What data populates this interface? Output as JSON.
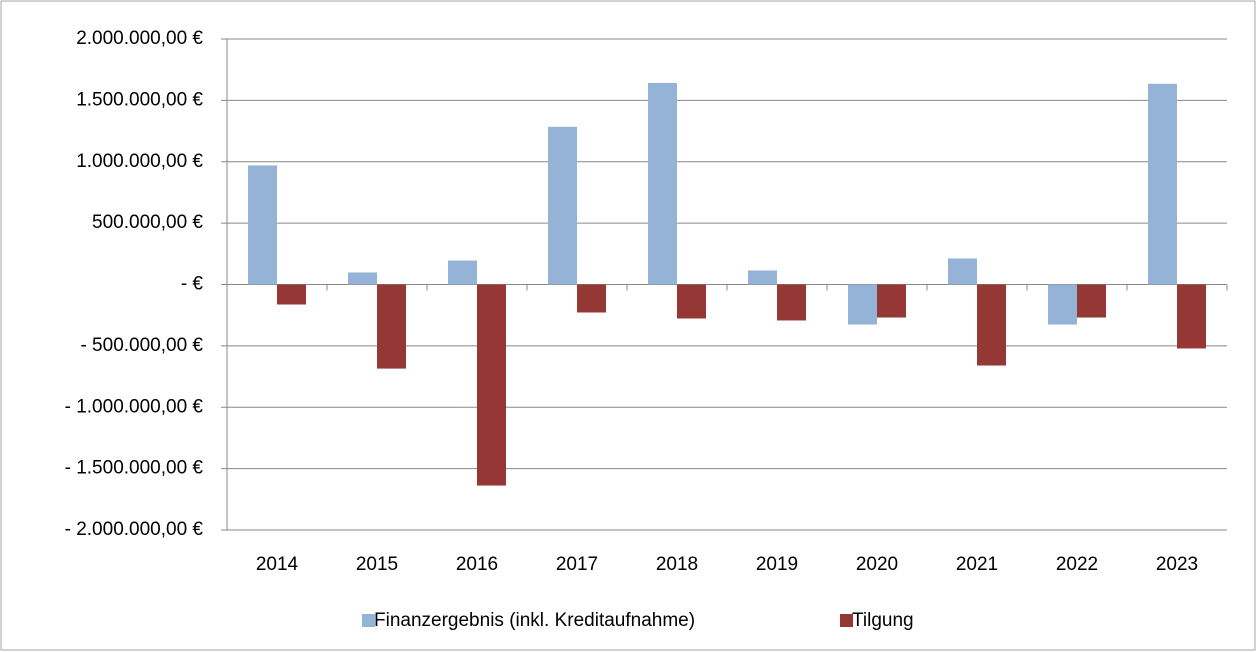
{
  "chart_data": {
    "type": "bar",
    "categories": [
      "2014",
      "2015",
      "2016",
      "2017",
      "2018",
      "2019",
      "2020",
      "2021",
      "2022",
      "2023"
    ],
    "series": [
      {
        "name": "Finanzergebnis (inkl. Kreditaufnahme)",
        "color": "#95b3d7",
        "values": [
          970000,
          98000,
          195000,
          1285000,
          1642000,
          114000,
          -326000,
          212000,
          -326000,
          1635000
        ]
      },
      {
        "name": "Tilgung",
        "color": "#953735",
        "values": [
          -163000,
          -685000,
          -1638000,
          -228000,
          -277000,
          -293000,
          -269000,
          -660000,
          -269000,
          -521000
        ]
      }
    ],
    "ylim": [
      -2000000,
      2000000
    ],
    "yticks": [
      {
        "value": -2000000,
        "label": "- 2.000.000,00 €"
      },
      {
        "value": -1500000,
        "label": "- 1.500.000,00 €"
      },
      {
        "value": -1000000,
        "label": "- 1.000.000,00 €"
      },
      {
        "value": -500000,
        "label": "- 500.000,00 €"
      },
      {
        "value": 0,
        "label": "-   €"
      },
      {
        "value": 500000,
        "label": "500.000,00 €"
      },
      {
        "value": 1000000,
        "label": "1.000.000,00 €"
      },
      {
        "value": 1500000,
        "label": "1.500.000,00 €"
      },
      {
        "value": 2000000,
        "label": "2.000.000,00 €"
      }
    ],
    "grid": true,
    "legend": "bottom"
  }
}
